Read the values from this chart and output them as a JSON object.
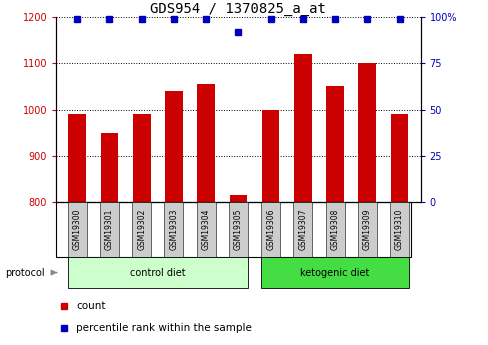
{
  "title": "GDS954 / 1370825_a_at",
  "samples": [
    "GSM19300",
    "GSM19301",
    "GSM19302",
    "GSM19303",
    "GSM19304",
    "GSM19305",
    "GSM19306",
    "GSM19307",
    "GSM19308",
    "GSM19309",
    "GSM19310"
  ],
  "counts": [
    990,
    950,
    990,
    1040,
    1055,
    815,
    1000,
    1120,
    1050,
    1100,
    990
  ],
  "percentile_ranks": [
    99,
    99,
    99,
    99,
    99,
    92,
    99,
    99,
    99,
    99,
    99
  ],
  "bar_color": "#cc0000",
  "dot_color": "#0000bb",
  "ylim_left": [
    800,
    1200
  ],
  "ylim_right": [
    0,
    100
  ],
  "yticks_left": [
    800,
    900,
    1000,
    1100,
    1200
  ],
  "yticks_right": [
    0,
    25,
    50,
    75,
    100
  ],
  "ytick_labels_right": [
    "0",
    "25",
    "50",
    "75",
    "100%"
  ],
  "groups": [
    {
      "label": "control diet",
      "start": 0,
      "end": 5,
      "color": "#ccffcc"
    },
    {
      "label": "ketogenic diet",
      "start": 6,
      "end": 10,
      "color": "#44dd44"
    }
  ],
  "protocol_label": "protocol",
  "legend_count_label": "count",
  "legend_pct_label": "percentile rank within the sample",
  "bar_width": 0.55,
  "tick_bg_color": "#cccccc",
  "title_fontsize": 10,
  "tick_fontsize": 7,
  "sample_fontsize": 5.5
}
